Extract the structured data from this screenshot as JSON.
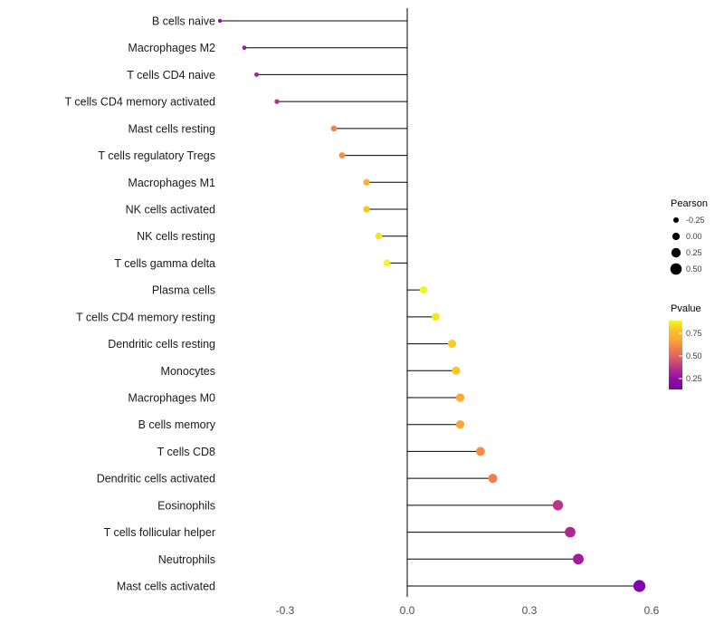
{
  "chart_data": {
    "type": "lollipop",
    "title": "",
    "background": "#FFFFFF",
    "grid": false,
    "zero_line": true,
    "x_axis": {
      "range": [
        -0.47,
        0.63
      ],
      "ticks": [
        {
          "value": -0.3,
          "label": "-0.3"
        },
        {
          "value": 0.0,
          "label": "0.0"
        },
        {
          "value": 0.3,
          "label": "0.3"
        },
        {
          "value": 0.6,
          "label": "0.6"
        }
      ]
    },
    "points": [
      {
        "label": "B cells naive",
        "pearson": -0.46,
        "color": "#8B0AA5"
      },
      {
        "label": "Macrophages M2",
        "pearson": -0.4,
        "color": "#9A169F"
      },
      {
        "label": "T cells CD4 naive",
        "pearson": -0.37,
        "color": "#A62098"
      },
      {
        "label": "T cells CD4 memory activated",
        "pearson": -0.32,
        "color": "#B5308B"
      },
      {
        "label": "Mast cells resting",
        "pearson": -0.18,
        "color": "#F2844B"
      },
      {
        "label": "T cells regulatory  Tregs",
        "pearson": -0.16,
        "color": "#F68F44"
      },
      {
        "label": "Macrophages M1",
        "pearson": -0.1,
        "color": "#FCB22F"
      },
      {
        "label": "NK cells activated",
        "pearson": -0.1,
        "color": "#FCC326"
      },
      {
        "label": "NK cells resting",
        "pearson": -0.07,
        "color": "#F5E424"
      },
      {
        "label": "T cells gamma delta",
        "pearson": -0.05,
        "color": "#F0F921"
      },
      {
        "label": "Plasma cells",
        "pearson": 0.04,
        "color": "#F1F821"
      },
      {
        "label": "T cells CD4 memory resting",
        "pearson": 0.07,
        "color": "#F3E81D"
      },
      {
        "label": "Dendritic cells resting",
        "pearson": 0.11,
        "color": "#FCCB26"
      },
      {
        "label": "Monocytes",
        "pearson": 0.12,
        "color": "#FCC426"
      },
      {
        "label": "Macrophages M0",
        "pearson": 0.13,
        "color": "#FBAC33"
      },
      {
        "label": "B cells memory",
        "pearson": 0.13,
        "color": "#FAA53A"
      },
      {
        "label": "T cells CD8",
        "pearson": 0.18,
        "color": "#F58C46"
      },
      {
        "label": "Dendritic cells activated",
        "pearson": 0.21,
        "color": "#EF7E50"
      },
      {
        "label": "Eosinophils",
        "pearson": 0.37,
        "color": "#BB3488"
      },
      {
        "label": "T cells follicular helper",
        "pearson": 0.4,
        "color": "#AE2892"
      },
      {
        "label": "Neutrophils",
        "pearson": 0.42,
        "color": "#A11B9B"
      },
      {
        "label": "Mast cells activated",
        "pearson": 0.57,
        "color": "#7F03A8"
      }
    ],
    "legend": {
      "position": "right",
      "size": {
        "title": "Pearson",
        "dot_color": "#000000",
        "entries": [
          {
            "value": -0.25,
            "label": "-0.25"
          },
          {
            "value": 0.0,
            "label": "0.00"
          },
          {
            "value": 0.25,
            "label": "0.25"
          },
          {
            "value": 0.5,
            "label": "0.50"
          }
        ]
      },
      "color": {
        "title": "Pvalue",
        "ticks": [
          "0.75",
          "0.50",
          "0.25"
        ],
        "gradient": [
          "#F0F921",
          "#FDC126",
          "#FCA636",
          "#ED7953",
          "#D8576B",
          "#B12A90",
          "#8F0DA4",
          "#7E03A8"
        ]
      }
    }
  }
}
